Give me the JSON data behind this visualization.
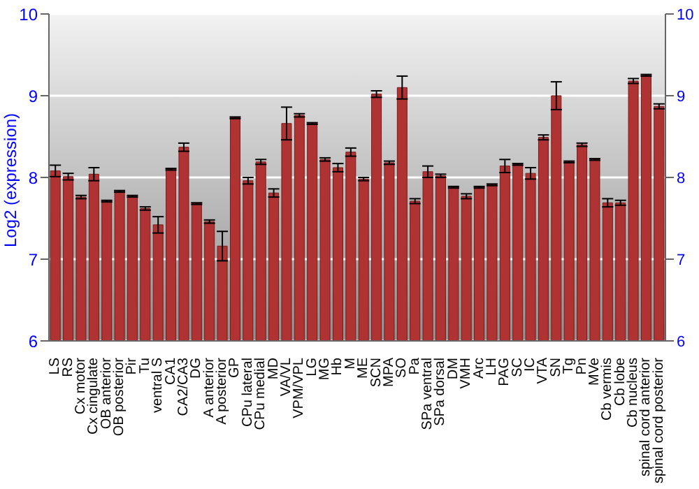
{
  "chart_data": {
    "type": "bar",
    "ylabel": "Log2 (expression)",
    "categories": [
      "LS",
      "RS",
      "Cx motor",
      "Cx cingulate",
      "OB anterior",
      "OB posterior",
      "Pir",
      "Tu",
      "ventral S",
      "CA1",
      "CA2/CA3",
      "DG",
      "A anterior",
      "A posterior",
      "GP",
      "CPu lateral",
      "CPu medial",
      "MD",
      "VA/VL",
      "VPM/VPL",
      "LG",
      "MG",
      "Hb",
      "M",
      "ME",
      "SCN",
      "MPA",
      "SO",
      "Pa",
      "SPa ventral",
      "SPa dorsal",
      "DM",
      "VMH",
      "Arc",
      "LH",
      "PAG",
      "SC",
      "IC",
      "VTA",
      "SN",
      "Tg",
      "Pn",
      "MVe",
      "Cb vermis",
      "Cb lobe",
      "Cb nucleus",
      "spinal cord anterior",
      "spinal cord posterior"
    ],
    "values": [
      8.08,
      8.01,
      7.76,
      8.04,
      7.71,
      7.83,
      7.77,
      7.62,
      7.42,
      8.1,
      8.37,
      7.68,
      7.46,
      7.16,
      8.73,
      7.96,
      8.19,
      7.81,
      8.66,
      8.76,
      8.66,
      8.22,
      8.12,
      8.31,
      7.98,
      9.02,
      8.18,
      9.1,
      7.71,
      8.07,
      8.02,
      7.88,
      7.77,
      7.88,
      7.91,
      8.14,
      8.16,
      8.05,
      8.49,
      9.0,
      8.19,
      8.4,
      8.22,
      7.69,
      7.69,
      9.18,
      9.25,
      8.87
    ],
    "errors": [
      0.07,
      0.04,
      0.02,
      0.08,
      0.01,
      0.01,
      0.01,
      0.02,
      0.1,
      0.01,
      0.05,
      0.01,
      0.02,
      0.18,
      0.01,
      0.04,
      0.03,
      0.05,
      0.2,
      0.02,
      0.01,
      0.02,
      0.05,
      0.05,
      0.02,
      0.04,
      0.02,
      0.14,
      0.03,
      0.07,
      0.02,
      0.01,
      0.03,
      0.01,
      0.01,
      0.08,
      0.01,
      0.07,
      0.03,
      0.17,
      0.01,
      0.02,
      0.01,
      0.05,
      0.03,
      0.03,
      0.01,
      0.03
    ],
    "color": "#b03333",
    "ylim": [
      6,
      10
    ],
    "yticks": [
      6,
      7,
      8,
      9,
      10
    ],
    "y2lim": [
      6,
      10
    ],
    "y2ticks": [
      6,
      7,
      8,
      9,
      10
    ],
    "grid": "y"
  }
}
